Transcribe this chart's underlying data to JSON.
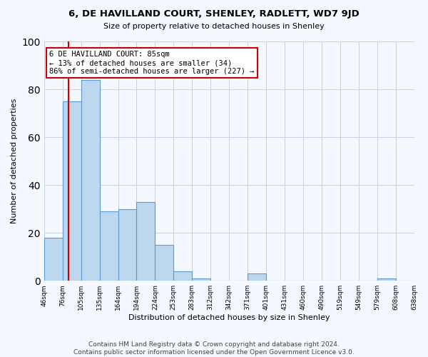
{
  "title": "6, DE HAVILLAND COURT, SHENLEY, RADLETT, WD7 9JD",
  "subtitle": "Size of property relative to detached houses in Shenley",
  "xlabel": "Distribution of detached houses by size in Shenley",
  "ylabel": "Number of detached properties",
  "bar_heights": [
    18,
    75,
    84,
    29,
    30,
    33,
    15,
    4,
    1,
    0,
    0,
    3,
    0,
    0,
    0,
    0,
    0,
    0,
    1,
    0
  ],
  "bar_color": "#bdd7ee",
  "bar_edge_color": "#5b9bd5",
  "property_line_bin": 1.5,
  "property_line_color": "#cc0000",
  "annotation_text": "6 DE HAVILLAND COURT: 85sqm\n← 13% of detached houses are smaller (34)\n86% of semi-detached houses are larger (227) →",
  "annotation_box_edge_color": "#cc0000",
  "ylim": [
    0,
    100
  ],
  "yticks": [
    0,
    20,
    40,
    60,
    80,
    100
  ],
  "tick_labels": [
    "46sqm",
    "76sqm",
    "105sqm",
    "135sqm",
    "164sqm",
    "194sqm",
    "224sqm",
    "253sqm",
    "283sqm",
    "312sqm",
    "342sqm",
    "371sqm",
    "401sqm",
    "431sqm",
    "460sqm",
    "490sqm",
    "519sqm",
    "549sqm",
    "579sqm",
    "608sqm",
    "638sqm"
  ],
  "footer_text": "Contains HM Land Registry data © Crown copyright and database right 2024.\nContains public sector information licensed under the Open Government Licence v3.0.",
  "bg_color": "#f5f8ff",
  "grid_color": "#c8d4e8",
  "title_fontsize": 9.5,
  "subtitle_fontsize": 8,
  "footer_fontsize": 6.5
}
